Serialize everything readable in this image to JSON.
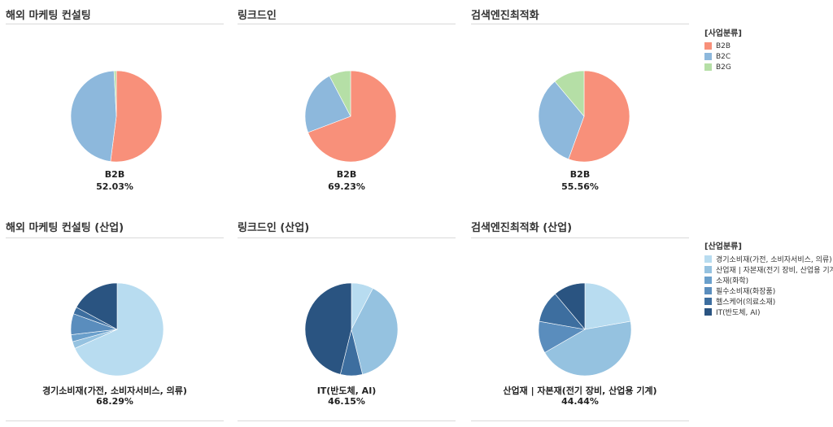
{
  "colors": {
    "B2B": "#f8907a",
    "B2C": "#8db8dc",
    "B2G": "#b5dfa6",
    "ind": [
      "#b8dcf0",
      "#95c2e0",
      "#6a9fcb",
      "#5a8dbd",
      "#3d6e9f",
      "#2a5481"
    ]
  },
  "legend_top": {
    "title": "[사업분류]",
    "items": [
      "B2B",
      "B2C",
      "B2G"
    ]
  },
  "legend_bottom": {
    "title": "[산업분류]",
    "items": [
      "경기소비재(가전, 소비자서비스, 의류)",
      "산업재 | 자본재(전기 장비, 산업용 기계)",
      "소재(화학)",
      "필수소비재(화장품)",
      "헬스케어(의료소재)",
      "IT(반도체, AI)"
    ]
  },
  "chart_data": [
    {
      "type": "pie",
      "title": "해외 마케팅 컨설팅",
      "labels": [
        "B2B",
        "B2C",
        "B2G"
      ],
      "values": [
        52.03,
        47.15,
        0.82
      ],
      "center_label": "B2B",
      "center_value": "52.03%"
    },
    {
      "type": "pie",
      "title": "링크드인",
      "labels": [
        "B2B",
        "B2C",
        "B2G"
      ],
      "values": [
        69.23,
        23.08,
        7.69
      ],
      "center_label": "B2B",
      "center_value": "69.23%"
    },
    {
      "type": "pie",
      "title": "검색엔진최적화",
      "labels": [
        "B2B",
        "B2C",
        "B2G"
      ],
      "values": [
        55.56,
        33.33,
        11.11
      ],
      "center_label": "B2B",
      "center_value": "55.56%"
    },
    {
      "type": "pie",
      "title": "해외 마케팅 컨설팅 (산업)",
      "labels": [
        "경기소비재(가전, 소비자서비스, 의류)",
        "산업재 | 자본재(전기 장비, 산업용 기계)",
        "소재(화학)",
        "필수소비재(화장품)",
        "헬스케어(의료소재)",
        "IT(반도체, AI)"
      ],
      "values": [
        68.29,
        2.44,
        2.44,
        7.32,
        2.44,
        17.07
      ],
      "center_label": "경기소비재(가전, 소비자서비스, 의류)",
      "center_value": "68.29%"
    },
    {
      "type": "pie",
      "title": "링크드인 (산업)",
      "labels": [
        "경기소비재(가전, 소비자서비스, 의류)",
        "산업재 | 자본재(전기 장비, 산업용 기계)",
        "소재(화학)",
        "필수소비재(화장품)",
        "헬스케어(의료소재)",
        "IT(반도체, AI)"
      ],
      "values": [
        7.69,
        38.46,
        0,
        0,
        7.69,
        46.15
      ],
      "center_label": "IT(반도체, AI)",
      "center_value": "46.15%"
    },
    {
      "type": "pie",
      "title": "검색엔진최적화 (산업)",
      "labels": [
        "경기소비재(가전, 소비자서비스, 의류)",
        "산업재 | 자본재(전기 장비, 산업용 기계)",
        "소재(화학)",
        "필수소비재(화장품)",
        "헬스케어(의료소재)",
        "IT(반도체, AI)"
      ],
      "values": [
        22.22,
        44.44,
        0,
        11.11,
        11.11,
        11.11
      ],
      "center_label": "산업재 | 자본재(전기 장비, 산업용 기계)",
      "center_value": "44.44%"
    }
  ]
}
